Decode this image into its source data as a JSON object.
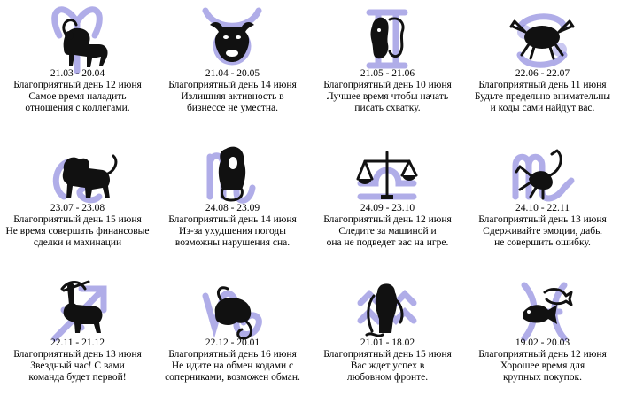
{
  "signs": [
    {
      "icon": "aries-icon",
      "dates": "21.03 - 20.04",
      "day": "Благоприятный день 12 июня",
      "line1": "Самое время наладить",
      "line2": "отношения с коллегами."
    },
    {
      "icon": "taurus-icon",
      "dates": "21.04 - 20.05",
      "day": "Благоприятный день 14 июня",
      "line1": "Излишняя активность в",
      "line2": "бизнессе не уместна."
    },
    {
      "icon": "gemini-icon",
      "dates": "21.05 - 21.06",
      "day": "Благоприятный день 10 июня",
      "line1": "Лучшее время чтобы начать",
      "line2": "писать схватку."
    },
    {
      "icon": "cancer-icon",
      "dates": "22.06 - 22.07",
      "day": "Благоприятный день 11 июня",
      "line1": "Будьте предельно внимательны",
      "line2": "и коды сами найдут вас."
    },
    {
      "icon": "leo-icon",
      "dates": "23.07 - 23.08",
      "day": "Благоприятный день 15 июня",
      "line1": "Не время совершать финансовые",
      "line2": "сделки и махинации"
    },
    {
      "icon": "virgo-icon",
      "dates": "24.08 - 23.09",
      "day": "Благоприятный день 14 июня",
      "line1": "Из-за ухудшения погоды",
      "line2": "возможны нарушения сна."
    },
    {
      "icon": "libra-icon",
      "dates": "24.09 - 23.10",
      "day": "Благоприятный день 12 июня",
      "line1": "Следите за машиной и",
      "line2": "она не подведет вас на игре."
    },
    {
      "icon": "scorpio-icon",
      "dates": "24.10 - 22.11",
      "day": "Благоприятный день 13 июня",
      "line1": "Сдерживайте эмоции, дабы",
      "line2": "не совершить ошибку."
    },
    {
      "icon": "sagittarius-icon",
      "dates": "22.11 - 21.12",
      "day": "Благоприятный день 13 июня",
      "line1": "Звездный час! С вами",
      "line2": "команда будет первой!"
    },
    {
      "icon": "capricorn-icon",
      "dates": "22.12 - 20.01",
      "day": "Благоприятный день 16 июня",
      "line1": "Не идите на обмен кодами с",
      "line2": "соперниками, возможен обман."
    },
    {
      "icon": "aquarius-icon",
      "dates": "21.01 - 18.02",
      "day": "Благоприятный день 15 июня",
      "line1": "Вас ждет успех в",
      "line2": "любовном фронте."
    },
    {
      "icon": "pisces-icon",
      "dates": "19.02 - 20.03",
      "day": "Благоприятный день 12 июня",
      "line1": "Хорошее время для",
      "line2": "крупных покупок."
    }
  ]
}
